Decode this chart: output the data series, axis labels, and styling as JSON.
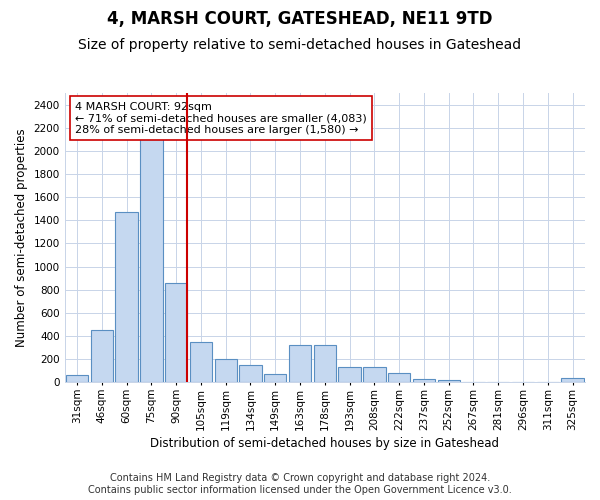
{
  "title": "4, MARSH COURT, GATESHEAD, NE11 9TD",
  "subtitle": "Size of property relative to semi-detached houses in Gateshead",
  "xlabel": "Distribution of semi-detached houses by size in Gateshead",
  "ylabel": "Number of semi-detached properties",
  "footer_line1": "Contains HM Land Registry data © Crown copyright and database right 2024.",
  "footer_line2": "Contains public sector information licensed under the Open Government Licence v3.0.",
  "annotation_line1": "4 MARSH COURT: 92sqm",
  "annotation_line2": "← 71% of semi-detached houses are smaller (4,083)",
  "annotation_line3": "28% of semi-detached houses are larger (1,580) →",
  "bar_color": "#c5d8f0",
  "bar_edge_color": "#5a8fc2",
  "marker_line_color": "#cc0000",
  "annotation_box_edge_color": "#cc0000",
  "background_color": "#ffffff",
  "grid_color": "#c8d4e8",
  "categories": [
    "31sqm",
    "46sqm",
    "60sqm",
    "75sqm",
    "90sqm",
    "105sqm",
    "119sqm",
    "134sqm",
    "149sqm",
    "163sqm",
    "178sqm",
    "193sqm",
    "208sqm",
    "222sqm",
    "237sqm",
    "252sqm",
    "267sqm",
    "281sqm",
    "296sqm",
    "311sqm",
    "325sqm"
  ],
  "values": [
    60,
    450,
    1470,
    2200,
    860,
    350,
    200,
    150,
    75,
    320,
    320,
    130,
    130,
    80,
    30,
    20,
    0,
    0,
    0,
    0,
    40
  ],
  "marker_index": 4,
  "ylim": [
    0,
    2500
  ],
  "yticks": [
    0,
    200,
    400,
    600,
    800,
    1000,
    1200,
    1400,
    1600,
    1800,
    2000,
    2200,
    2400
  ],
  "title_fontsize": 12,
  "subtitle_fontsize": 10,
  "axis_label_fontsize": 8.5,
  "tick_fontsize": 7.5,
  "annotation_fontsize": 8,
  "footer_fontsize": 7
}
